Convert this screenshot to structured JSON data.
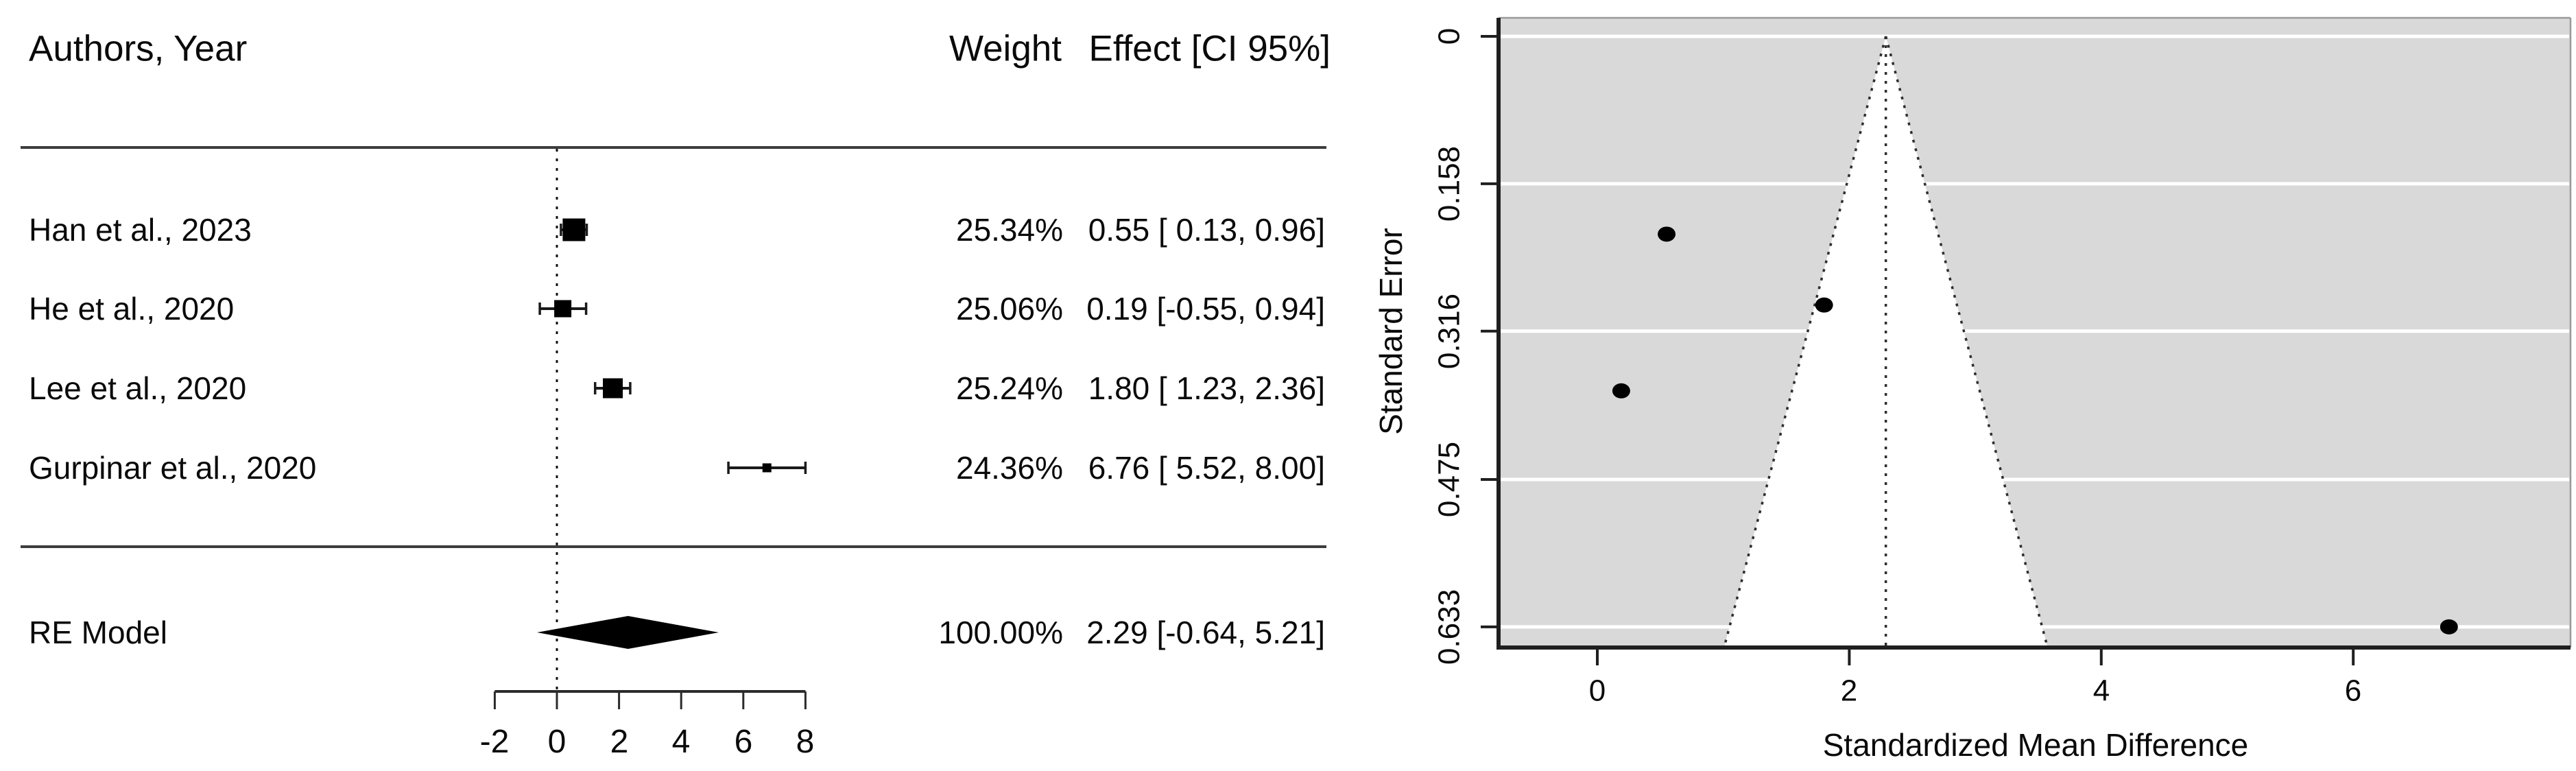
{
  "chart_data": [
    {
      "type": "forest",
      "columns": {
        "authors": "Authors, Year",
        "weight": "Weight",
        "effect": "Effect [CI 95%]"
      },
      "studies": [
        {
          "label": "Han et al., 2023",
          "weight": "25.34%",
          "effect_label": "0.55 [ 0.13, 0.96]",
          "estimate": 0.55,
          "ci_low": 0.13,
          "ci_high": 0.96,
          "box_size": 33
        },
        {
          "label": "He et al., 2020",
          "weight": "25.06%",
          "effect_label": "0.19 [-0.55, 0.94]",
          "estimate": 0.19,
          "ci_low": -0.55,
          "ci_high": 0.94,
          "box_size": 25
        },
        {
          "label": "Lee et al., 2020",
          "weight": "25.24%",
          "effect_label": "1.80 [ 1.23, 2.36]",
          "estimate": 1.8,
          "ci_low": 1.23,
          "ci_high": 2.36,
          "box_size": 29
        },
        {
          "label": "Gurpinar et al., 2020",
          "weight": "24.36%",
          "effect_label": "6.76 [ 5.52, 8.00]",
          "estimate": 6.76,
          "ci_low": 5.52,
          "ci_high": 8.0,
          "box_size": 13
        }
      ],
      "summary": {
        "label": "RE Model",
        "weight": "100.00%",
        "effect_label": "2.29 [-0.64, 5.21]",
        "estimate": 2.29,
        "ci_low": -0.64,
        "ci_high": 5.21
      },
      "x_ticks": [
        -2,
        0,
        2,
        4,
        6,
        8
      ],
      "x_tick_labels": [
        "-2",
        "0",
        "2",
        "4",
        "6",
        "8"
      ],
      "reference_line": 0,
      "xlim": [
        -2,
        8
      ]
    },
    {
      "type": "funnel",
      "xlabel": "Standardized Mean Difference",
      "ylabel": "Standard Error",
      "x_ticks": [
        0,
        2,
        4,
        6
      ],
      "x_tick_labels": [
        "0",
        "2",
        "4",
        "6"
      ],
      "y_ticks": [
        0,
        0.158,
        0.316,
        0.475,
        0.633
      ],
      "y_tick_labels": [
        "0",
        "0.158",
        "0.316",
        "0.475",
        "0.633"
      ],
      "estimate": 2.29,
      "ci_multiplier": 1.96,
      "points": [
        {
          "x": 0.55,
          "se": 0.212
        },
        {
          "x": 1.8,
          "se": 0.288
        },
        {
          "x": 0.19,
          "se": 0.38
        },
        {
          "x": 6.76,
          "se": 0.633
        }
      ],
      "colors": {
        "background": "#d9d9d9",
        "funnel_region": "#ffffff",
        "gridlines": "#ffffff",
        "points": "#000000",
        "axis": "#1f1f1f"
      },
      "x_range_shown": [
        -0.78,
        7.72
      ],
      "y_range_shown": [
        0,
        0.655
      ],
      "legend": "none",
      "grid": "horizontal-white-lines"
    }
  ]
}
